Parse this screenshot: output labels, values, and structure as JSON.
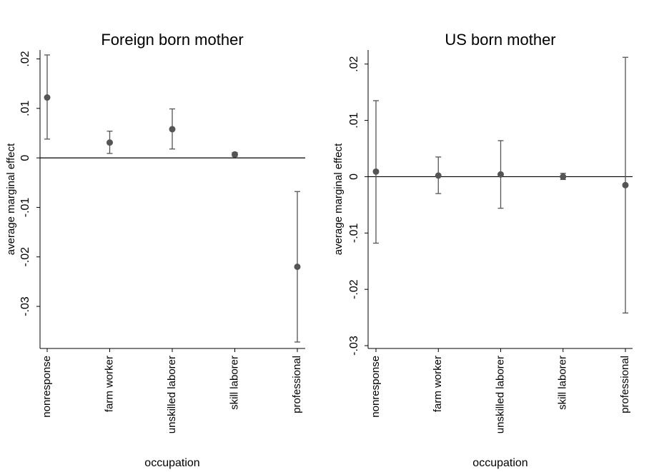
{
  "chart_data": [
    {
      "type": "scatter",
      "title": "Foreign born mother",
      "xlabel": "occupation",
      "ylabel": "average marginal effect",
      "categories": [
        "nonresponse",
        "farm worker",
        "unskilled laborer",
        "skill laborer",
        "professional"
      ],
      "values": [
        0.0122,
        0.0031,
        0.0058,
        0.0007,
        -0.022
      ],
      "ci_lower": [
        0.0038,
        0.0009,
        0.0018,
        0.0003,
        -0.0372
      ],
      "ci_upper": [
        0.0208,
        0.0054,
        0.0099,
        0.0011,
        -0.0068
      ],
      "yticks": [
        0.02,
        0.01,
        0,
        -0.01,
        -0.02,
        -0.03
      ],
      "ytick_labels": [
        ".02",
        ".01",
        "0",
        "-.01",
        "-.02",
        "-.03"
      ],
      "ylim": [
        -0.0385,
        0.0218
      ],
      "reference_line": 0,
      "grid": false
    },
    {
      "type": "scatter",
      "title": "US born mother",
      "xlabel": "occupation",
      "ylabel": "average marginal effect",
      "categories": [
        "nonresponse",
        "farm worker",
        "unskilled laborer",
        "skill laborer",
        "professional"
      ],
      "values": [
        0.0009,
        0.0002,
        0.0004,
        0.0,
        -0.0015
      ],
      "ci_lower": [
        -0.0118,
        -0.003,
        -0.0056,
        -0.0005,
        -0.0242
      ],
      "ci_upper": [
        0.0135,
        0.0035,
        0.0064,
        0.0006,
        0.0212
      ],
      "yticks": [
        0.02,
        0.01,
        0,
        -0.01,
        -0.02,
        -0.03
      ],
      "ytick_labels": [
        ".02",
        ".01",
        "0",
        "-.01",
        "-.02",
        "-.03"
      ],
      "ylim": [
        -0.0305,
        0.0225
      ],
      "reference_line": 0,
      "grid": false
    }
  ],
  "colors": {
    "marker": "#555555",
    "error_bar": "#555555",
    "axis": "#000000",
    "reference_line": "#000000"
  }
}
